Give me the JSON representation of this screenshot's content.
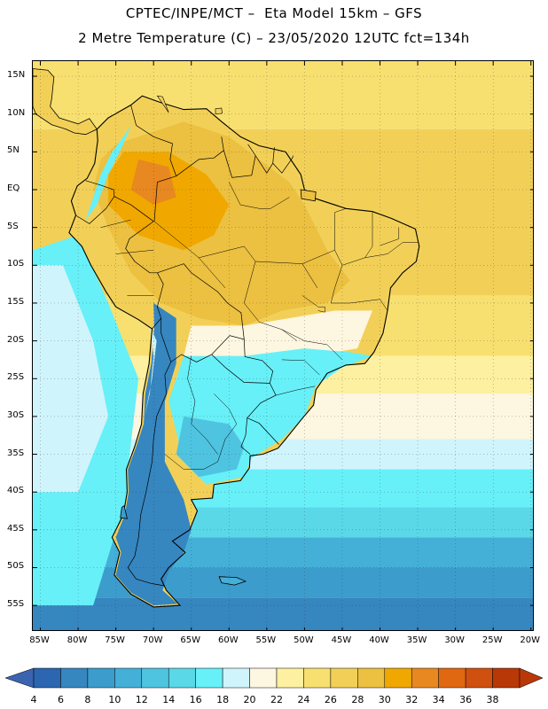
{
  "header": {
    "line1": "CPTEC/INPE/MCT –  Eta Model 15km – GFS",
    "line2": "2 Metre Temperature (C) – 23/05/2020 12UTC fct=134h"
  },
  "map": {
    "lat_labels": [
      "15N",
      "10N",
      "5N",
      "EQ",
      "5S",
      "10S",
      "15S",
      "20S",
      "25S",
      "30S",
      "35S",
      "40S",
      "45S",
      "50S",
      "55S"
    ],
    "lon_labels": [
      "85W",
      "80W",
      "75W",
      "70W",
      "65W",
      "60W",
      "55W",
      "50W",
      "45W",
      "40W",
      "35W",
      "30W",
      "25W",
      "20W"
    ],
    "extent": {
      "lon_min": -86,
      "lon_max": -19.5,
      "lat_min": -58.5,
      "lat_max": 17
    }
  },
  "colorbar": {
    "levels": [
      "4",
      "6",
      "8",
      "10",
      "12",
      "14",
      "16",
      "18",
      "20",
      "22",
      "24",
      "26",
      "28",
      "30",
      "32",
      "34",
      "36",
      "38"
    ],
    "colors": [
      "#2c66b0",
      "#3686c0",
      "#3c9ccc",
      "#44b0d8",
      "#4fc4e0",
      "#5ad8e8",
      "#67f0f8",
      "#d0f4fc",
      "#fdf6e0",
      "#fdf0a0",
      "#f8e070",
      "#f2d058",
      "#ecc040",
      "#f0a800",
      "#e88820",
      "#e06810",
      "#d05010",
      "#b83808"
    ],
    "under_color": "#3a64b0",
    "over_color": "#b83808"
  }
}
